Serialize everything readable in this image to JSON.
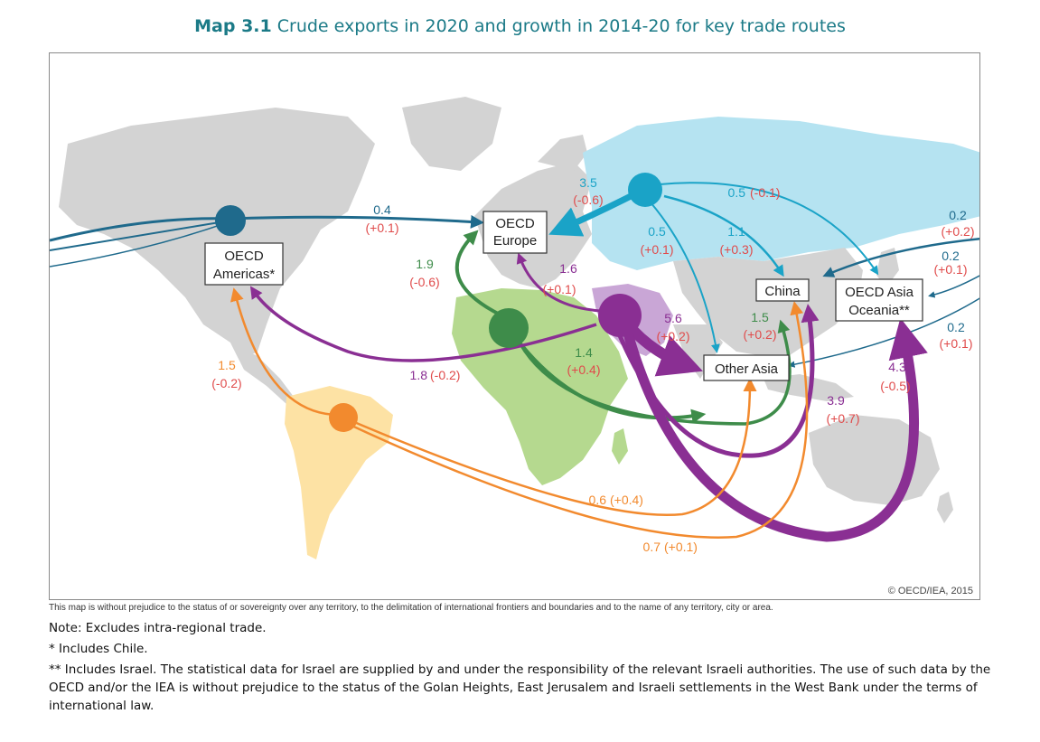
{
  "title": {
    "prefix": "Map 3.1",
    "text": "Crude exports in 2020 and growth in 2014-20 for key trade routes"
  },
  "colors": {
    "title": "#1b7a87",
    "americas": "#1f6a8c",
    "russia": "#1aa3c7",
    "africa": "#3e8c4a",
    "middle_east": "#8a2f93",
    "latin_america": "#f28a2e",
    "growth_label": "#e04b4b",
    "land": "#d3d3d3",
    "russia_land": "#b5e3f1",
    "africa_land": "#b5d98f",
    "latam_land": "#fde2a4",
    "mideast_land": "#c9a6d6"
  },
  "regions": {
    "oecd_americas": [
      "OECD",
      "Americas*"
    ],
    "oecd_europe": [
      "OECD",
      "Europe"
    ],
    "china": "China",
    "oecd_asia_oceania": [
      "OECD Asia",
      "Oceania**"
    ],
    "other_asia": "Other Asia"
  },
  "flows": {
    "americas_europe": {
      "value": "0.4",
      "growth": "(+0.1)"
    },
    "russia_europe": {
      "value": "3.5",
      "growth": "(-0.6)"
    },
    "russia_oecd_asia": {
      "value": "0.5",
      "growth": "(-0.1)"
    },
    "russia_other_asia": {
      "value": "0.5",
      "growth": "(+0.1)"
    },
    "russia_china": {
      "value": "1.1",
      "growth": "(+0.3)"
    },
    "americas_oecd_asia_1": {
      "value": "0.2",
      "growth": "(+0.2)"
    },
    "americas_china": {
      "value": "0.2",
      "growth": "(+0.1)"
    },
    "americas_other_asia": {
      "value": "0.2",
      "growth": "(+0.1)"
    },
    "africa_europe": {
      "value": "1.9",
      "growth": "(-0.6)"
    },
    "mideast_europe": {
      "value": "1.6",
      "growth": "(+0.1)"
    },
    "mideast_other_asia": {
      "value": "5.6",
      "growth": "(+0.2)"
    },
    "africa_china": {
      "value": "1.5",
      "growth": "(+0.2)"
    },
    "africa_other_asia": {
      "value": "1.4",
      "growth": "(+0.4)"
    },
    "mideast_americas": {
      "value": "1.8",
      "growth": "(-0.2)"
    },
    "latam_americas": {
      "value": "1.5",
      "growth": "(-0.2)"
    },
    "mideast_china": {
      "value": "3.9",
      "growth": "(+0.7)"
    },
    "mideast_oecd_asia": {
      "value": "4.3",
      "growth": "(-0.5)"
    },
    "latam_other_asia": {
      "value": "0.6",
      "growth": "(+0.4)"
    },
    "latam_china": {
      "value": "0.7",
      "growth": "(+0.1)"
    }
  },
  "copyright": "© OECD/IEA, 2015",
  "disclaimer": "This map is without prejudice to the status of or sovereignty over any territory, to the delimitation of international frontiers and boundaries and to the name of any territory, city or area.",
  "notes": {
    "note1": "Note: Excludes intra-regional trade.",
    "note2": "* Includes Chile.",
    "note3": "** Includes Israel. The statistical data for Israel are supplied by and under the responsibility of the relevant Israeli authorities. The use of such data by the OECD and/or the IEA is without prejudice to the status of the Golan Heights, East Jerusalem and Israeli settlements in the West Bank under the terms of international law."
  }
}
